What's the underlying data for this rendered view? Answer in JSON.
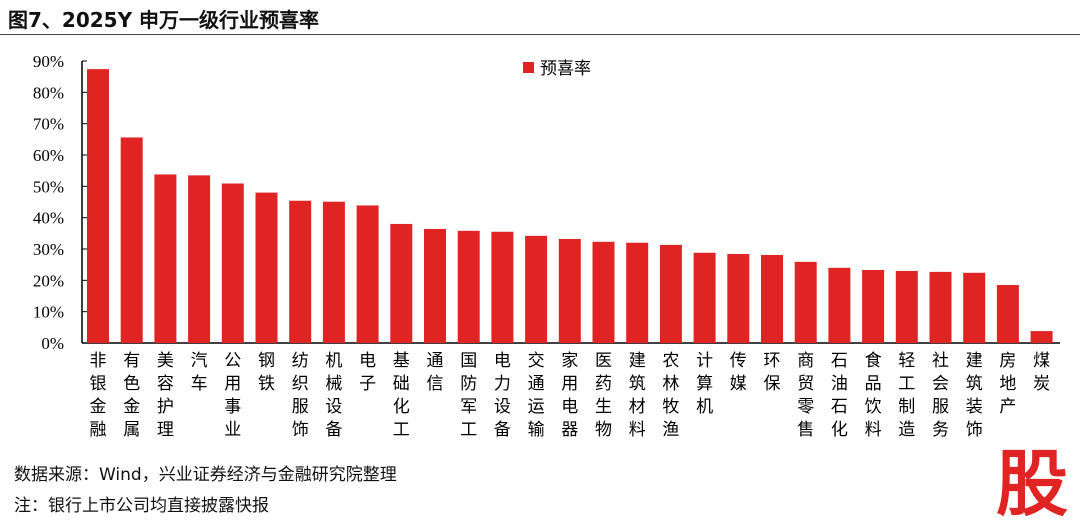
{
  "title": "图7、2025Y 申万一级行业预喜率",
  "footer": {
    "source": "数据来源：Wind，兴业证券经济与金融研究院整理",
    "note": "注：银行上市公司均直接披露快报"
  },
  "watermark": "股",
  "chart_data": {
    "type": "bar",
    "title": "",
    "xlabel": "",
    "ylabel": "",
    "ylim": [
      0,
      90
    ],
    "yticks": [
      "0%",
      "10%",
      "20%",
      "30%",
      "40%",
      "50%",
      "60%",
      "70%",
      "80%",
      "90%"
    ],
    "legend": {
      "position": "top-center",
      "entries": [
        "预喜率"
      ]
    },
    "grid": false,
    "color": "#e02424",
    "categories": [
      "非银金融",
      "有色金属",
      "美容护理",
      "汽车",
      "公用事业",
      "钢铁",
      "纺织服饰",
      "机械设备",
      "电子",
      "基础化工",
      "通信",
      "国防军工",
      "电力设备",
      "交通运输",
      "家用电器",
      "医药生物",
      "建筑材料",
      "农林牧渔",
      "计算机",
      "传媒",
      "环保",
      "商贸零售",
      "石油石化",
      "食品饮料",
      "轻工制造",
      "社会服务",
      "建筑装饰",
      "房地产",
      "煤炭"
    ],
    "series": [
      {
        "name": "预喜率",
        "values": [
          87.4,
          65.6,
          53.8,
          53.5,
          50.9,
          48.0,
          45.4,
          45.1,
          43.9,
          38.0,
          36.4,
          35.8,
          35.5,
          34.2,
          33.2,
          32.3,
          32.0,
          31.3,
          28.8,
          28.4,
          28.1,
          25.9,
          24.0,
          23.3,
          23.0,
          22.7,
          22.4,
          18.5,
          3.8
        ]
      }
    ]
  }
}
